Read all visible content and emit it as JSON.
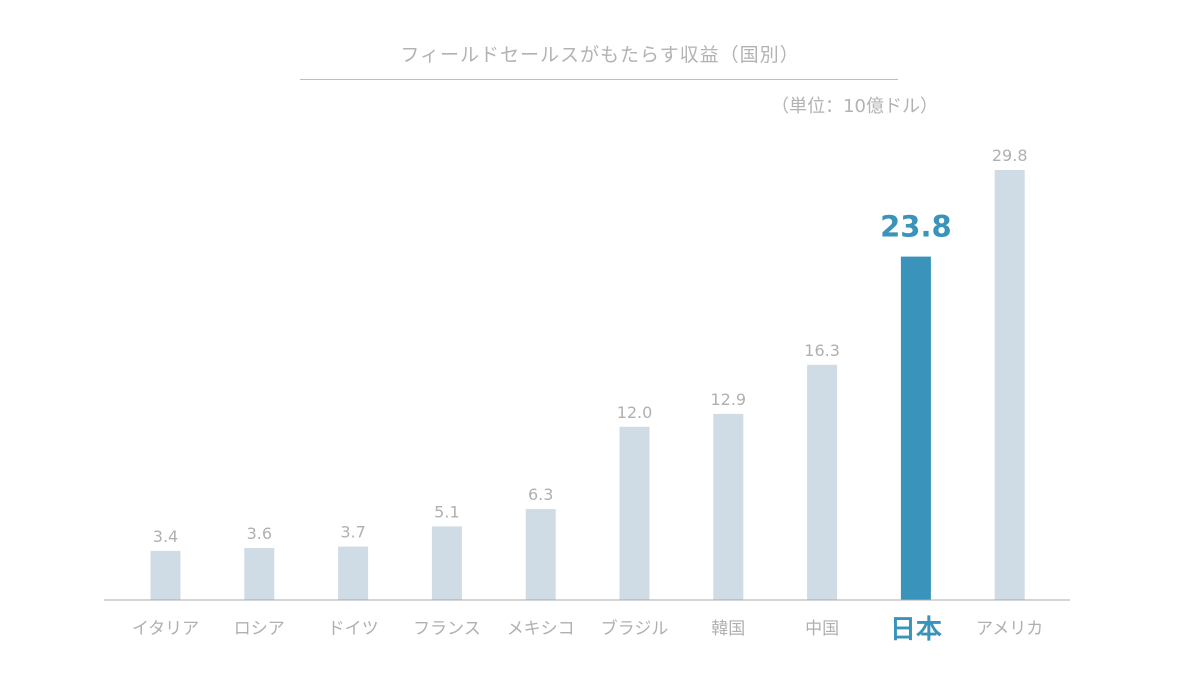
{
  "chart_data": {
    "type": "bar",
    "title": "フィールドセールスがもたらす収益（国別）",
    "unit": "（単位：10億ドル）",
    "categories": [
      "イタリア",
      "ロシア",
      "ドイツ",
      "フランス",
      "メキシコ",
      "ブラジル",
      "韓国",
      "中国",
      "日本",
      "アメリカ"
    ],
    "values": [
      3.4,
      3.6,
      3.7,
      5.1,
      6.3,
      12.0,
      12.9,
      16.3,
      23.8,
      29.8
    ],
    "value_labels": [
      "3.4",
      "3.6",
      "3.7",
      "5.1",
      "6.3",
      "12.0",
      "12.9",
      "16.3",
      "23.8",
      "29.8"
    ],
    "highlight": "日本",
    "ylim": [
      0,
      34
    ],
    "grid": false,
    "colors": {
      "bar": "#cfdbe5",
      "highlight": "#3a93ba",
      "label": "#b0b0b0",
      "axis": "#aaaaaa"
    }
  }
}
